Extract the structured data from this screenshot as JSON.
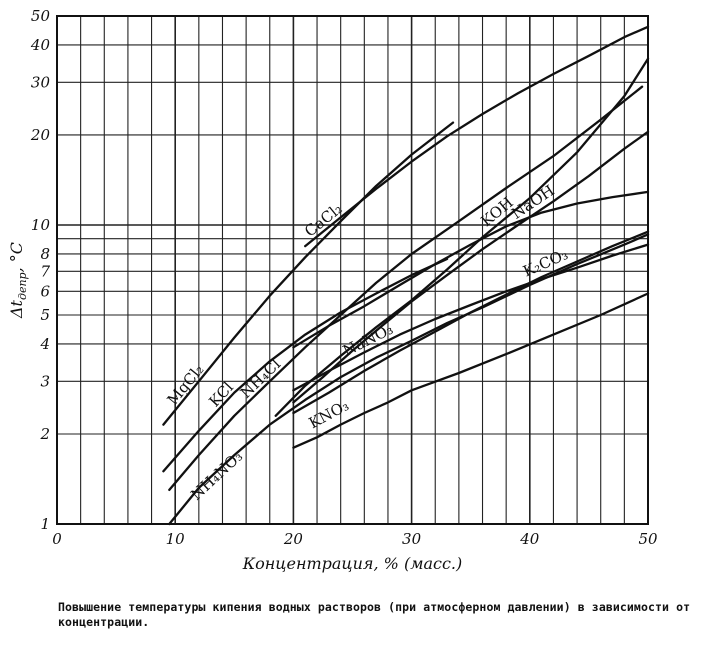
{
  "chart_data": {
    "type": "line",
    "xlabel": "Концентрация, % (масс.)",
    "ylabel": "Δt_депр, °C",
    "ylabel_main": "Δt",
    "ylabel_sub": "депр",
    "ylabel_unit": ", °C",
    "xlim": [
      0,
      50
    ],
    "ylim": [
      1,
      50
    ],
    "y_scale": "log",
    "grid": true,
    "x_ticks": [
      0,
      10,
      20,
      30,
      40,
      50
    ],
    "x_tick_labels": [
      "0",
      "10",
      "20",
      "30",
      "40",
      "50"
    ],
    "y_ticks": [
      1,
      2,
      3,
      4,
      5,
      6,
      7,
      8,
      10,
      20,
      30,
      40,
      50
    ],
    "y_tick_labels": [
      "1",
      "2",
      "3",
      "4",
      "5",
      "6",
      "7",
      "8",
      "10",
      "20",
      "30",
      "40",
      "50"
    ],
    "series": [
      {
        "name": "MgCl₂",
        "x": [
          9,
          12,
          15,
          18,
          21,
          24,
          27,
          30,
          33.5
        ],
        "y": [
          2.15,
          3.0,
          4.2,
          5.8,
          7.8,
          10.3,
          13.5,
          17.2,
          22.0
        ]
      },
      {
        "name": "KCl",
        "x": [
          9,
          12,
          15,
          18,
          21,
          24,
          27,
          30,
          33
        ],
        "y": [
          1.5,
          2.05,
          2.75,
          3.5,
          4.3,
          5.1,
          5.9,
          6.8,
          7.7
        ]
      },
      {
        "name": "NH₄Cl",
        "x": [
          9.5,
          12,
          15,
          18,
          21,
          24,
          27,
          30,
          34,
          38,
          42,
          46,
          49.5
        ],
        "y": [
          1.3,
          1.7,
          2.3,
          3.0,
          3.9,
          5.0,
          6.4,
          8.0,
          10.3,
          13.3,
          17.0,
          22.5,
          29.0
        ]
      },
      {
        "name": "NH₄NO₃",
        "x": [
          9.5,
          12,
          15,
          18,
          21,
          24,
          27,
          30,
          33,
          36,
          40,
          44,
          48,
          50
        ],
        "y": [
          1.0,
          1.32,
          1.7,
          2.15,
          2.6,
          3.1,
          3.6,
          4.1,
          4.7,
          5.3,
          6.3,
          7.4,
          8.6,
          9.3
        ]
      },
      {
        "name": "CaCl₂",
        "x": [
          21,
          24,
          27,
          30,
          33,
          36,
          39,
          42,
          45,
          48,
          50
        ],
        "y": [
          8.5,
          10.6,
          13.2,
          16.3,
          19.8,
          23.5,
          27.6,
          32.0,
          36.8,
          42.5,
          46.0
        ]
      },
      {
        "name": "KOH",
        "x": [
          18.5,
          21,
          24,
          27,
          30,
          33,
          36,
          40,
          44,
          48,
          50
        ],
        "y": [
          2.3,
          2.9,
          3.65,
          4.55,
          5.6,
          7.1,
          9.1,
          12.3,
          17.5,
          27.0,
          36.0
        ]
      },
      {
        "name": "NaOH",
        "x": [
          20,
          22.5,
          25,
          27.5,
          30,
          33,
          36,
          39,
          42,
          45,
          48,
          50
        ],
        "y": [
          2.55,
          3.1,
          3.8,
          4.6,
          5.55,
          6.8,
          8.3,
          10.0,
          12.0,
          14.6,
          18.0,
          20.5
        ]
      },
      {
        "name": "K₂CO₃",
        "x": [
          20,
          23,
          26,
          29,
          32,
          35,
          38,
          41,
          44,
          47,
          50
        ],
        "y": [
          2.35,
          2.75,
          3.25,
          3.8,
          4.4,
          5.1,
          5.85,
          6.7,
          7.55,
          8.5,
          9.5
        ]
      },
      {
        "name": "NaNO₃",
        "x": [
          20,
          23,
          26,
          29,
          32,
          35,
          38,
          41,
          44,
          47,
          50
        ],
        "y": [
          2.8,
          3.25,
          3.75,
          4.3,
          4.85,
          5.4,
          6.0,
          6.6,
          7.2,
          7.9,
          8.6
        ]
      },
      {
        "name": "KNO₃",
        "x": [
          20,
          22,
          24,
          26,
          28,
          30,
          34,
          38,
          42,
          46,
          50
        ],
        "y": [
          1.8,
          1.95,
          2.15,
          2.35,
          2.55,
          2.8,
          3.2,
          3.7,
          4.3,
          5.0,
          5.9
        ]
      },
      {
        "name": "",
        "x": [
          20,
          23,
          26,
          29,
          32,
          35,
          38,
          41,
          44,
          47,
          50
        ],
        "y": [
          3.9,
          4.6,
          5.35,
          6.3,
          7.4,
          8.6,
          9.9,
          11.0,
          11.8,
          12.4,
          12.9
        ]
      }
    ]
  },
  "caption": "Повышение температуры кипения водных растворов (при атмосферном давлении) в зависимости от концентрации."
}
